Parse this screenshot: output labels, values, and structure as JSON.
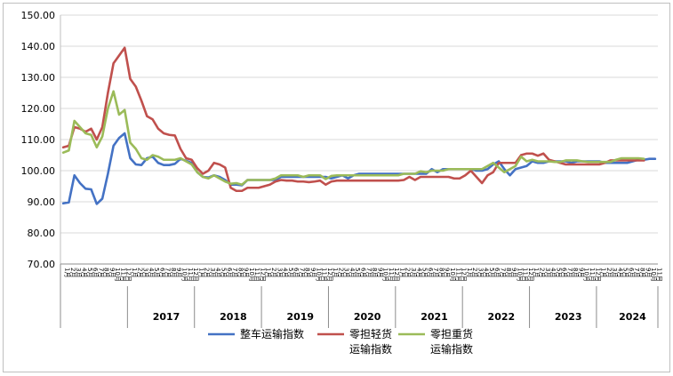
{
  "chart_data": {
    "type": "line",
    "title": "",
    "xlabel": "",
    "ylabel": "",
    "ylim": [
      70,
      150
    ],
    "yticks": [
      "70.00",
      "80.00",
      "90.00",
      "100.00",
      "110.00",
      "120.00",
      "130.00",
      "140.00",
      "150.00"
    ],
    "grid": "horizontal",
    "legend_position": "bottom",
    "x_start": "2016-01",
    "year_labels": [
      "2017",
      "2018",
      "2019",
      "2020",
      "2021",
      "2022",
      "2023",
      "2024"
    ],
    "series": [
      {
        "name": "整车运输指数",
        "color": "#4472C4",
        "values": [
          89.5,
          89.8,
          98.5,
          96,
          94.2,
          94,
          89.3,
          91,
          99,
          108,
          110.5,
          112,
          104,
          102,
          101.8,
          104,
          104.5,
          102.5,
          101.8,
          101.8,
          102.2,
          103.8,
          103.2,
          102.5,
          99.5,
          98,
          97.8,
          98.5,
          98,
          97,
          95.5,
          95.5,
          95.3,
          97,
          97,
          97,
          97,
          97,
          97,
          98,
          98,
          98,
          98,
          98,
          98,
          98,
          98,
          98,
          97.5,
          98,
          98.5,
          97.5,
          98.5,
          99,
          99,
          99,
          99,
          99,
          99,
          99,
          99,
          99,
          99,
          99,
          99,
          99,
          100.5,
          99.5,
          100.5,
          100.5,
          100.5,
          100.5,
          100.5,
          100.5,
          100,
          100,
          100.5,
          102,
          103,
          100.5,
          98.5,
          100.5,
          101,
          101.5,
          103,
          102.5,
          102.5,
          103,
          103,
          103,
          103,
          102.5,
          103,
          103,
          103,
          103,
          103,
          102.5,
          102.5,
          102.5,
          102.5,
          102.5,
          103,
          103.5,
          103.5,
          103.8,
          103.8
        ]
      },
      {
        "name": "零担轻货 运输指数",
        "color": "#C0504D",
        "values": [
          107.5,
          108,
          114,
          113.5,
          112.5,
          113.5,
          110,
          114,
          125,
          134.5,
          137,
          139.5,
          129.5,
          127,
          122.5,
          117.5,
          116.5,
          113.5,
          112,
          111.5,
          111.3,
          107,
          104,
          103.5,
          100.8,
          99,
          100,
          102.5,
          102,
          101,
          94.5,
          93.5,
          93.5,
          94.5,
          94.5,
          94.5,
          95,
          95.5,
          96.5,
          97,
          96.8,
          96.8,
          96.5,
          96.5,
          96.3,
          96.5,
          96.8,
          95.5,
          96.5,
          96.8,
          96.8,
          96.8,
          96.8,
          96.8,
          96.8,
          96.8,
          96.8,
          96.8,
          96.8,
          96.8,
          96.8,
          97,
          98,
          97,
          98,
          98,
          98,
          98,
          98,
          98,
          97.5,
          97.5,
          98.5,
          100,
          98,
          96,
          98.5,
          99.5,
          102.5,
          102.5,
          102.5,
          102.5,
          105,
          105.5,
          105.5,
          104.8,
          105.5,
          103.5,
          103,
          102.5,
          102,
          102,
          102,
          102,
          102,
          102,
          102,
          102.5,
          103.3,
          103.3,
          103.3,
          103.3,
          103.3,
          103.3,
          103.3
        ]
      },
      {
        "name": "零担重货 运输指数",
        "color": "#9BBB59",
        "values": [
          105.8,
          106.5,
          116,
          114,
          112,
          111.5,
          107.5,
          111,
          120,
          125.5,
          118,
          119.5,
          109,
          107,
          104,
          103.5,
          105,
          104.5,
          103.5,
          103.5,
          103.5,
          104,
          103,
          102,
          99.5,
          98,
          97.5,
          98.5,
          97.5,
          96.5,
          95.8,
          96,
          95.5,
          97,
          97,
          97,
          97,
          97,
          97.5,
          98.5,
          98.5,
          98.5,
          98.5,
          98,
          98.5,
          98.5,
          98.5,
          97.3,
          98.3,
          98.5,
          98.5,
          98.5,
          98.5,
          98.5,
          98.5,
          98.5,
          98.5,
          98.5,
          98.5,
          98.5,
          98.5,
          99,
          99,
          99,
          99.8,
          99.5,
          100,
          100,
          100,
          100.5,
          100.5,
          100.5,
          100.5,
          100.5,
          100.5,
          100.5,
          101.5,
          102.5,
          101,
          99.5,
          100.5,
          101.5,
          104.5,
          103,
          103.5,
          103,
          103,
          103,
          102.8,
          102.8,
          103.3,
          103.3,
          103.3,
          103,
          102.8,
          102.8,
          102.8,
          102.8,
          102.8,
          103.5,
          104,
          104,
          104,
          104,
          103.8
        ]
      }
    ]
  }
}
